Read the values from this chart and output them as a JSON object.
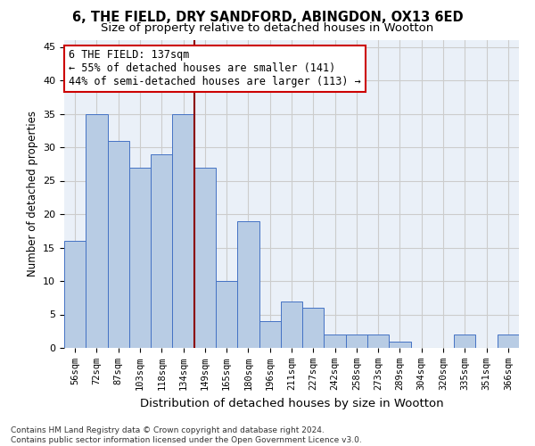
{
  "title_line1": "6, THE FIELD, DRY SANDFORD, ABINGDON, OX13 6ED",
  "title_line2": "Size of property relative to detached houses in Wootton",
  "xlabel": "Distribution of detached houses by size in Wootton",
  "ylabel": "Number of detached properties",
  "categories": [
    "56sqm",
    "72sqm",
    "87sqm",
    "103sqm",
    "118sqm",
    "134sqm",
    "149sqm",
    "165sqm",
    "180sqm",
    "196sqm",
    "211sqm",
    "227sqm",
    "242sqm",
    "258sqm",
    "273sqm",
    "289sqm",
    "304sqm",
    "320sqm",
    "335sqm",
    "351sqm",
    "366sqm"
  ],
  "values": [
    16,
    35,
    31,
    27,
    29,
    35,
    27,
    10,
    19,
    4,
    7,
    6,
    2,
    2,
    2,
    1,
    0,
    0,
    2,
    0,
    2
  ],
  "bar_color": "#b8cce4",
  "bar_edge_color": "#4472c4",
  "vline_x": 5.5,
  "vline_color": "#8b0000",
  "annotation_line1": "6 THE FIELD: 137sqm",
  "annotation_line2": "← 55% of detached houses are smaller (141)",
  "annotation_line3": "44% of semi-detached houses are larger (113) →",
  "annotation_box_color": "#ffffff",
  "annotation_box_edge_color": "#cc0000",
  "ylim": [
    0,
    46
  ],
  "yticks": [
    0,
    5,
    10,
    15,
    20,
    25,
    30,
    35,
    40,
    45
  ],
  "grid_color": "#cccccc",
  "bg_color": "#eaf0f8",
  "footer_line1": "Contains HM Land Registry data © Crown copyright and database right 2024.",
  "footer_line2": "Contains public sector information licensed under the Open Government Licence v3.0.",
  "title_fontsize": 10.5,
  "subtitle_fontsize": 9.5,
  "ylabel_fontsize": 8.5,
  "xlabel_fontsize": 9.5,
  "tick_fontsize": 7.5,
  "annotation_fontsize": 8.5,
  "footer_fontsize": 6.5
}
